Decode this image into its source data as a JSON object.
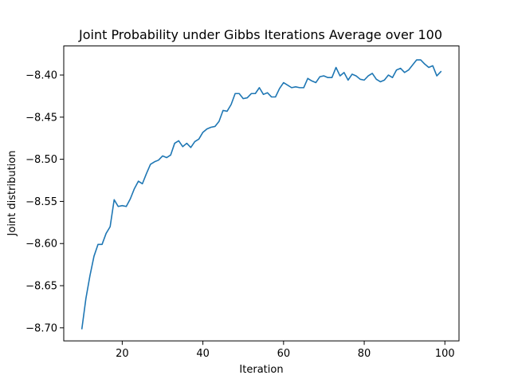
{
  "chart_data": {
    "type": "line",
    "title": "Joint Probability under Gibbs Iterations Average over 100",
    "xlabel": "Iteration",
    "ylabel": "Joint distribution",
    "xlim": [
      5.5,
      103.5
    ],
    "ylim": [
      -8.7155,
      -8.3655
    ],
    "grid": false,
    "xticks": [
      20,
      40,
      60,
      80,
      100
    ],
    "xtick_labels": [
      "20",
      "40",
      "60",
      "80",
      "100"
    ],
    "yticks": [
      -8.7,
      -8.65,
      -8.6,
      -8.55,
      -8.5,
      -8.45,
      -8.4
    ],
    "ytick_labels": [
      "−8.70",
      "−8.65",
      "−8.60",
      "−8.55",
      "−8.50",
      "−8.45",
      "−8.40"
    ],
    "series": [
      {
        "color": "#1f77b4",
        "x": [
          10,
          11,
          12,
          13,
          14,
          15,
          16,
          17,
          18,
          19,
          20,
          21,
          22,
          23,
          24,
          25,
          26,
          27,
          28,
          29,
          30,
          31,
          32,
          33,
          34,
          35,
          36,
          37,
          38,
          39,
          40,
          41,
          42,
          43,
          44,
          45,
          46,
          47,
          48,
          49,
          50,
          51,
          52,
          53,
          54,
          55,
          56,
          57,
          58,
          59,
          60,
          61,
          62,
          63,
          64,
          65,
          66,
          67,
          68,
          69,
          70,
          71,
          72,
          73,
          74,
          75,
          76,
          77,
          78,
          79,
          80,
          81,
          82,
          83,
          84,
          85,
          86,
          87,
          88,
          89,
          90,
          91,
          92,
          93,
          94,
          95,
          96,
          97,
          98,
          99
        ],
        "values": [
          -8.701,
          -8.665,
          -8.638,
          -8.615,
          -8.601,
          -8.601,
          -8.588,
          -8.58,
          -8.548,
          -8.556,
          -8.555,
          -8.556,
          -8.547,
          -8.535,
          -8.526,
          -8.529,
          -8.517,
          -8.506,
          -8.503,
          -8.501,
          -8.496,
          -8.498,
          -8.495,
          -8.481,
          -8.478,
          -8.485,
          -8.481,
          -8.486,
          -8.479,
          -8.476,
          -8.468,
          -8.464,
          -8.462,
          -8.461,
          -8.455,
          -8.442,
          -8.443,
          -8.435,
          -8.422,
          -8.422,
          -8.428,
          -8.427,
          -8.422,
          -8.422,
          -8.415,
          -8.423,
          -8.421,
          -8.426,
          -8.426,
          -8.416,
          -8.409,
          -8.412,
          -8.415,
          -8.414,
          -8.415,
          -8.415,
          -8.404,
          -8.407,
          -8.409,
          -8.402,
          -8.401,
          -8.403,
          -8.403,
          -8.391,
          -8.401,
          -8.397,
          -8.406,
          -8.399,
          -8.401,
          -8.405,
          -8.406,
          -8.401,
          -8.398,
          -8.405,
          -8.408,
          -8.406,
          -8.4,
          -8.403,
          -8.394,
          -8.392,
          -8.397,
          -8.394,
          -8.388,
          -8.382,
          -8.382,
          -8.387,
          -8.391,
          -8.389,
          -8.401,
          -8.396
        ]
      }
    ]
  }
}
